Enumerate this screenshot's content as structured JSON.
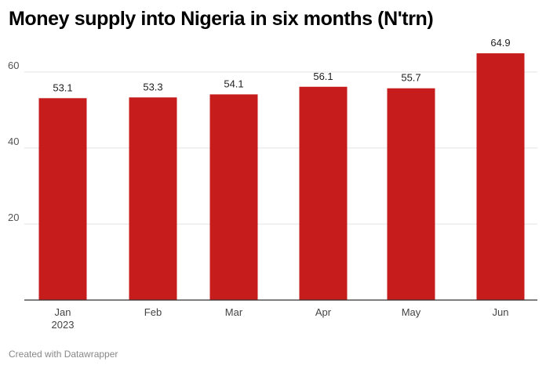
{
  "footer": "Created with Datawrapper",
  "colors": {
    "bar": "#c61c1c",
    "grid": "#e3e3e3",
    "baseline": "#333333"
  },
  "chart_data": {
    "type": "bar",
    "title": "Money supply into Nigeria in six months (N'trn)",
    "categories": [
      "Jan 2023",
      "Feb",
      "Mar",
      "Apr",
      "May",
      "Jun"
    ],
    "category_lines": [
      [
        "Jan",
        "2023"
      ],
      [
        "Feb"
      ],
      [
        "Mar"
      ],
      [
        "Apr"
      ],
      [
        "May"
      ],
      [
        "Jun"
      ]
    ],
    "values": [
      53.1,
      53.3,
      54.1,
      56.1,
      55.7,
      64.9
    ],
    "value_labels": [
      "53.1",
      "53.3",
      "54.1",
      "56.1",
      "55.7",
      "64.9"
    ],
    "ylim": [
      0,
      68
    ],
    "yticks": [
      20,
      40,
      60
    ],
    "xlabel": "",
    "ylabel": "",
    "grid": true,
    "legend": "none"
  }
}
